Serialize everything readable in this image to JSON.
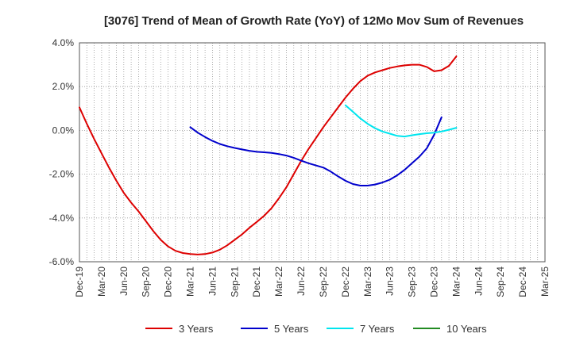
{
  "chart_data": {
    "type": "line",
    "title": "[3076]  Trend of Mean of Growth Rate (YoY) of 12Mo Mov Sum of Revenues",
    "xlabel": "",
    "ylabel": "",
    "x_categories": [
      "Dec-19",
      "Mar-20",
      "Jun-20",
      "Sep-20",
      "Dec-20",
      "Mar-21",
      "Jun-21",
      "Sep-21",
      "Dec-21",
      "Mar-22",
      "Jun-22",
      "Sep-22",
      "Dec-22",
      "Mar-23",
      "Jun-23",
      "Sep-23",
      "Dec-23",
      "Mar-24",
      "Jun-24",
      "Sep-24",
      "Dec-24",
      "Mar-25"
    ],
    "y_ticks": [
      "4.0%",
      "2.0%",
      "0.0%",
      "-2.0%",
      "-4.0%",
      "-6.0%"
    ],
    "ylim": [
      -6.0,
      4.0
    ],
    "grid": "dotted",
    "legend_position": "bottom",
    "series": [
      {
        "name": "3 Years",
        "color": "#dd0000",
        "start_index": 0,
        "values": [
          1.05,
          0.3,
          -0.4,
          -1.05,
          -1.7,
          -2.3,
          -2.85,
          -3.3,
          -3.7,
          -4.15,
          -4.6,
          -5.0,
          -5.3,
          -5.5,
          -5.6,
          -5.65,
          -5.67,
          -5.65,
          -5.58,
          -5.45,
          -5.25,
          -5.0,
          -4.75,
          -4.45,
          -4.18,
          -3.9,
          -3.55,
          -3.1,
          -2.6,
          -2.0,
          -1.4,
          -0.85,
          -0.35,
          0.15,
          0.6,
          1.05,
          1.5,
          1.9,
          2.25,
          2.5,
          2.65,
          2.75,
          2.85,
          2.92,
          2.97,
          3.0,
          3.0,
          2.9,
          2.7,
          2.75,
          2.95,
          3.38
        ]
      },
      {
        "name": "5 Years",
        "color": "#0000cc",
        "start_index": 15,
        "values": [
          0.15,
          -0.1,
          -0.3,
          -0.48,
          -0.62,
          -0.72,
          -0.8,
          -0.87,
          -0.93,
          -0.98,
          -1.0,
          -1.03,
          -1.08,
          -1.15,
          -1.25,
          -1.38,
          -1.5,
          -1.6,
          -1.7,
          -1.88,
          -2.1,
          -2.3,
          -2.45,
          -2.52,
          -2.52,
          -2.47,
          -2.38,
          -2.25,
          -2.05,
          -1.8,
          -1.5,
          -1.2,
          -0.82,
          -0.2,
          0.6
        ]
      },
      {
        "name": "7 Years",
        "color": "#00e5ee",
        "start_index": 36,
        "values": [
          1.15,
          0.85,
          0.55,
          0.3,
          0.1,
          -0.05,
          -0.15,
          -0.25,
          -0.28,
          -0.22,
          -0.17,
          -0.13,
          -0.1,
          -0.05,
          0.03,
          0.12
        ]
      },
      {
        "name": "10 Years",
        "color": "#228b22",
        "start_index": 0,
        "values": []
      }
    ]
  }
}
